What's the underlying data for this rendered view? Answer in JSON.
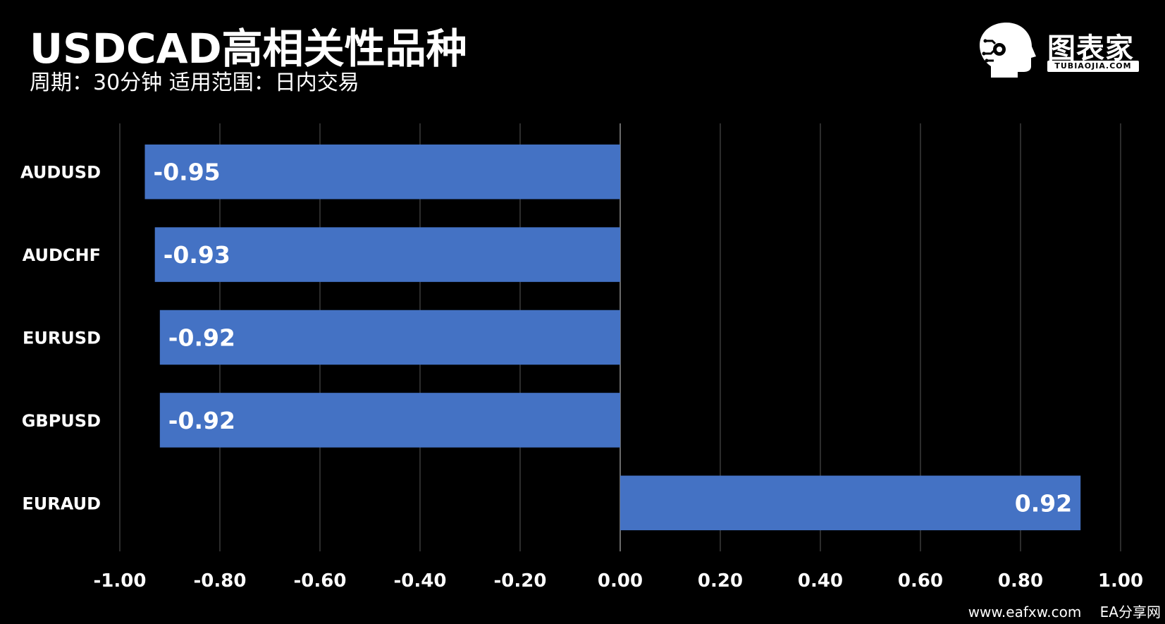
{
  "header": {
    "title": "USDCAD高相关性品种",
    "subtitle": "周期：30分钟  适用范围：日内交易"
  },
  "logo": {
    "text": "图表家",
    "subtext": "TUBIAOJIA.COM"
  },
  "watermark": {
    "site": "www.eafxw.com",
    "name": "EA分享网"
  },
  "colors": {
    "background": "#000000",
    "bar": "#4472C4",
    "grid": "#3a3a3a",
    "text": "#ffffff"
  },
  "chart_data": {
    "type": "bar",
    "orientation": "horizontal",
    "categories": [
      "AUDUSD",
      "AUDCHF",
      "EURUSD",
      "GBPUSD",
      "EURAUD"
    ],
    "values": [
      -0.95,
      -0.93,
      -0.92,
      -0.92,
      0.92
    ],
    "value_labels": [
      "-0.95",
      "-0.93",
      "-0.92",
      "-0.92",
      "0.92"
    ],
    "xlim": [
      -1.0,
      1.0
    ],
    "xticks": [
      "-1.00",
      "-0.80",
      "-0.60",
      "-0.40",
      "-0.20",
      "0.00",
      "0.20",
      "0.40",
      "0.60",
      "0.80",
      "1.00"
    ],
    "xtick_values": [
      -1.0,
      -0.8,
      -0.6,
      -0.4,
      -0.2,
      0.0,
      0.2,
      0.4,
      0.6,
      0.8,
      1.0
    ],
    "grid": true,
    "legend": "none"
  }
}
